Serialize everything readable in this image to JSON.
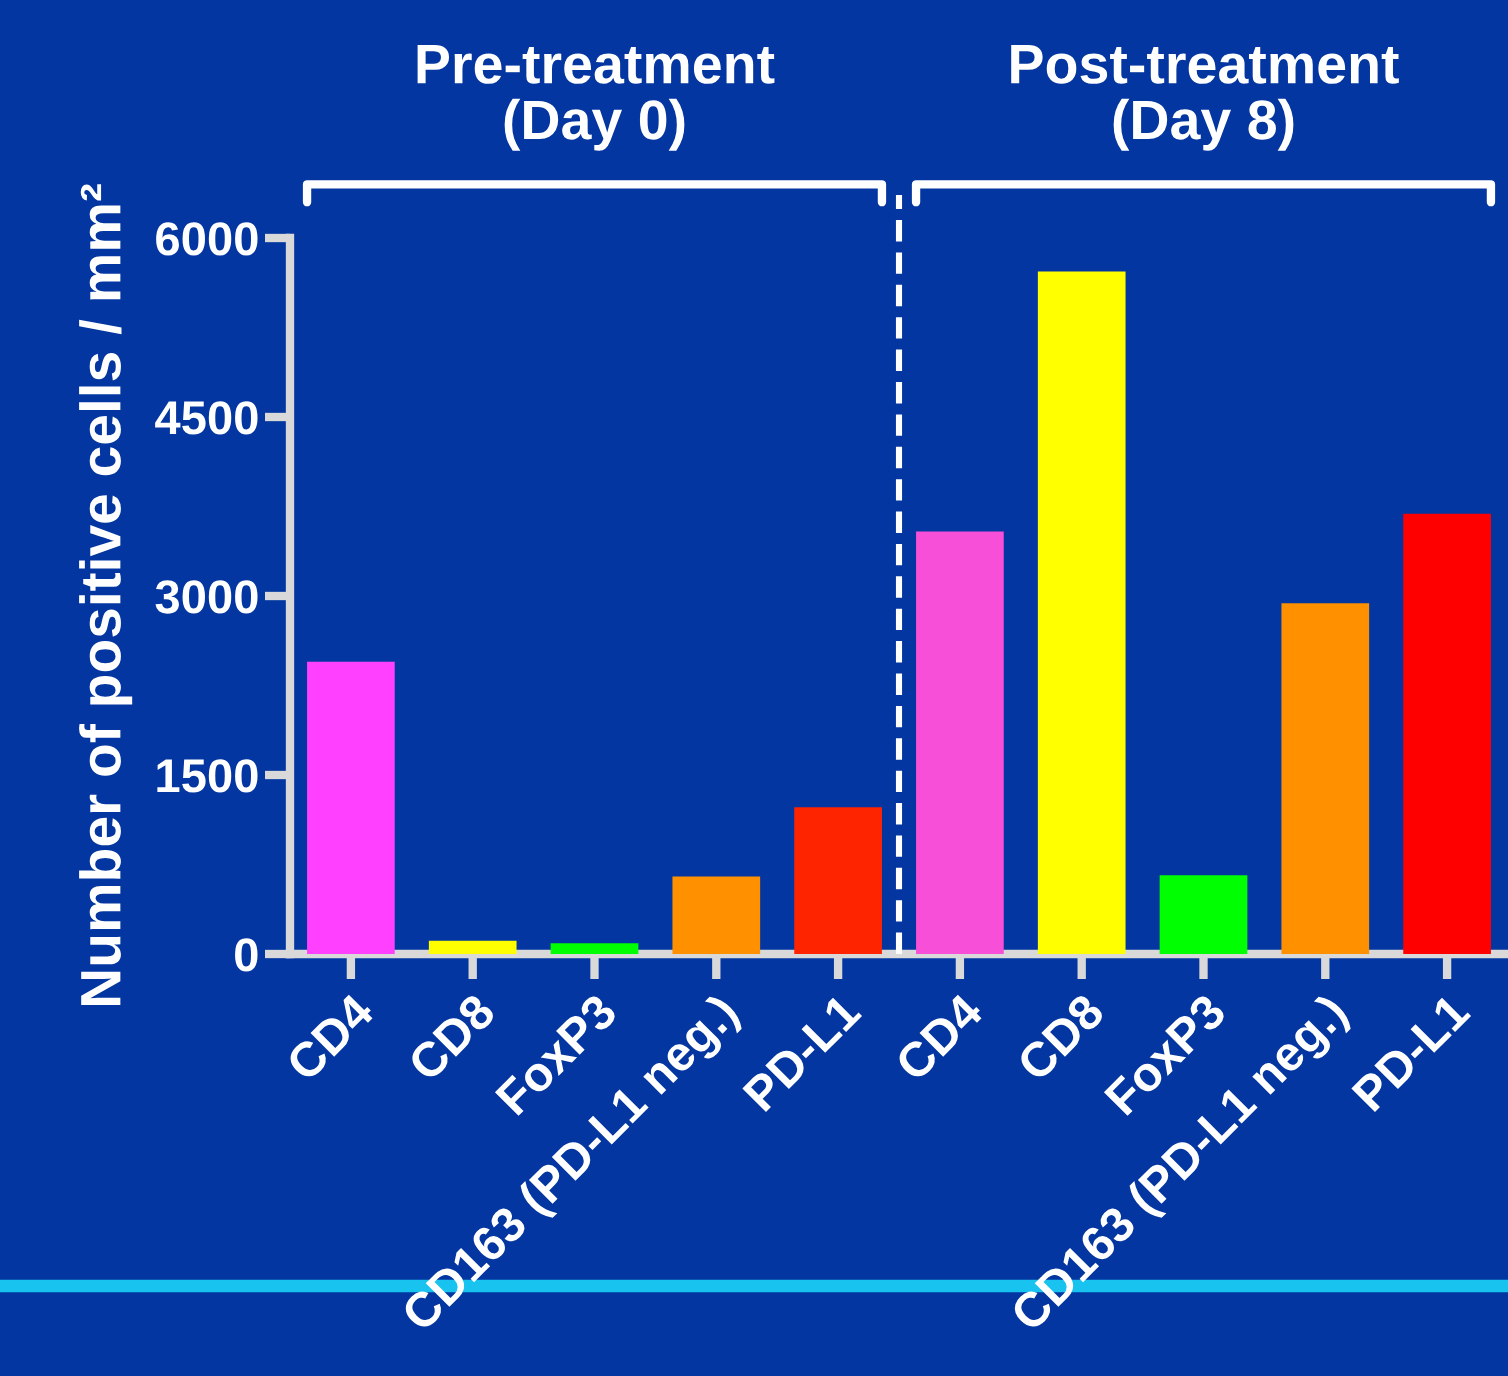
{
  "chart_data": {
    "type": "bar",
    "ylabel": "Number of positive cells / mm²",
    "annotations": [
      "Pre-treatment\n(Day 0)",
      "Post-treatment\n(Day 8)"
    ],
    "categories": [
      "CD4",
      "CD8",
      "FoxP3",
      "CD163 (PD-L1 neg.)",
      "PD-L1",
      "CD4",
      "CD8",
      "FoxP3",
      "CD163 (PD-L1 neg.)",
      "PD-L1"
    ],
    "values": [
      2450,
      110,
      90,
      650,
      1230,
      3540,
      5720,
      660,
      2940,
      3690
    ],
    "colors": [
      "#ff40ff",
      "#ffff00",
      "#00ff00",
      "#ff9000",
      "#ff2400",
      "#f74fd8",
      "#ffff00",
      "#00ff00",
      "#ff9100",
      "#ff0000"
    ],
    "ylim": [
      0,
      6000
    ],
    "yticks": [
      0,
      1500,
      3000,
      4500,
      6000
    ]
  }
}
